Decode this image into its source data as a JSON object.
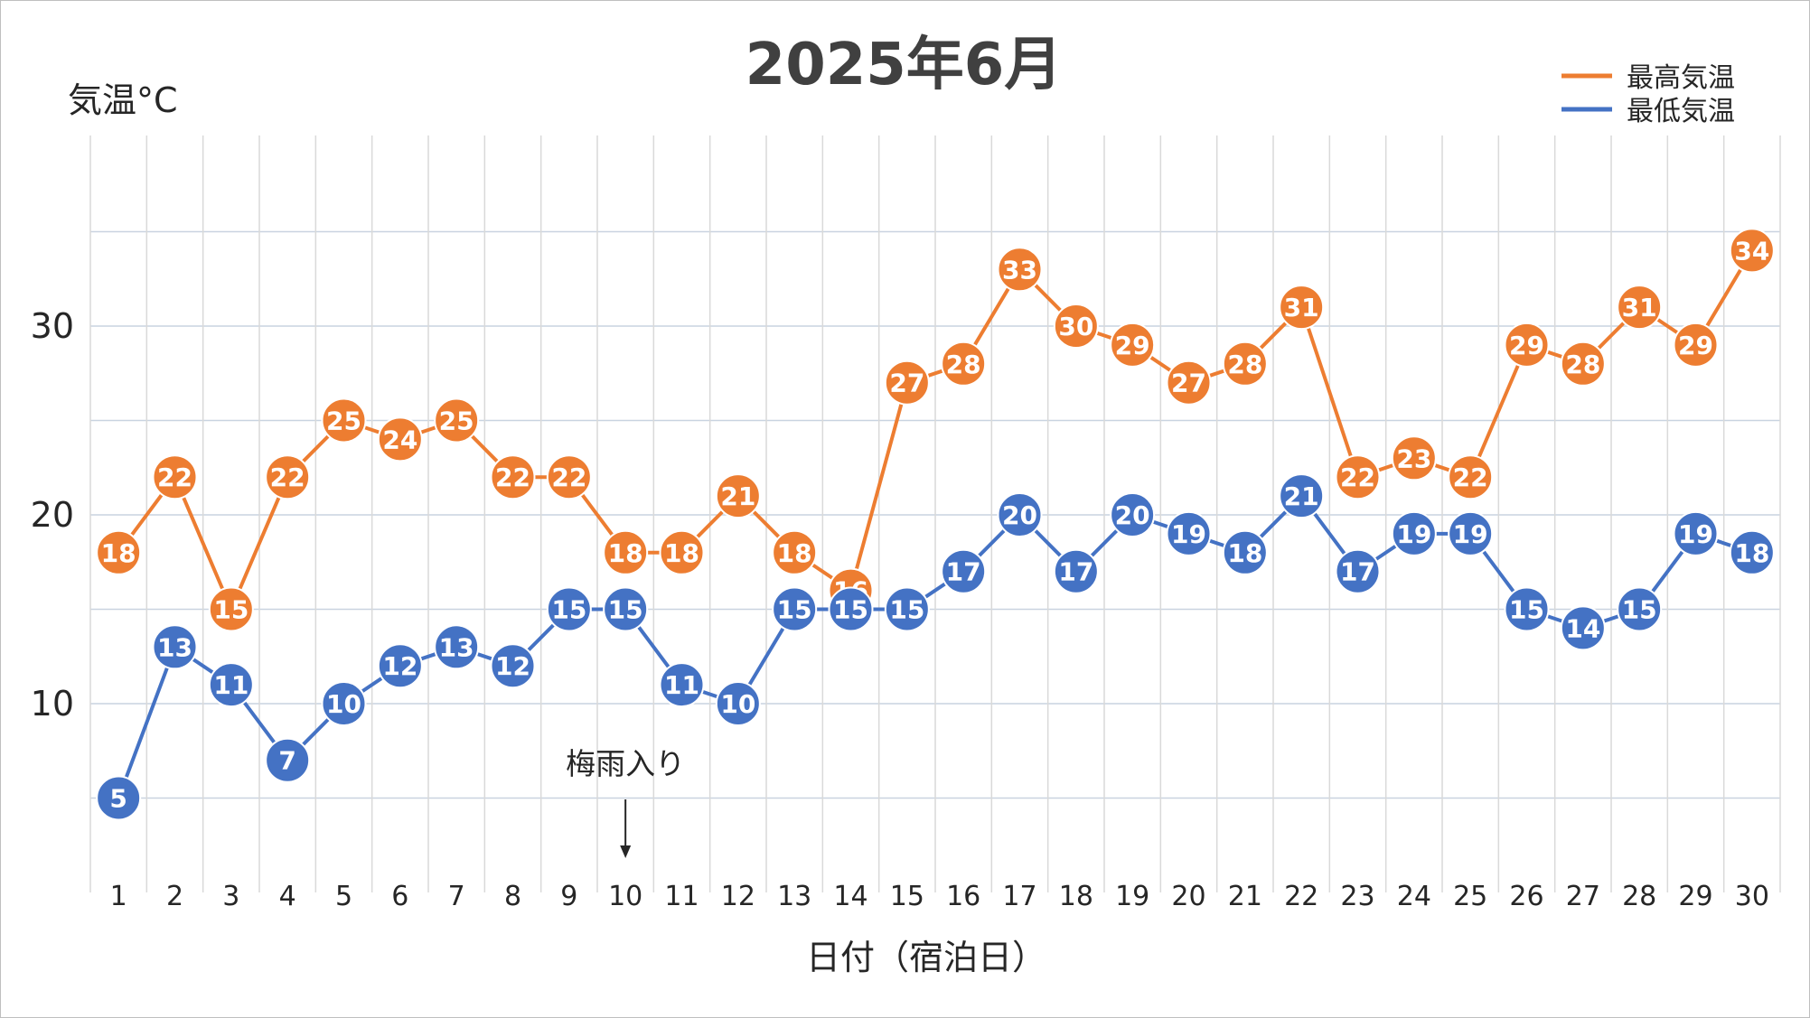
{
  "chart_data": {
    "type": "line",
    "title": "2025年6月",
    "ylabel": "気温°C",
    "xlabel": "日付（宿泊日）",
    "x": [
      1,
      2,
      3,
      4,
      5,
      6,
      7,
      8,
      9,
      10,
      11,
      12,
      13,
      14,
      15,
      16,
      17,
      18,
      19,
      20,
      21,
      22,
      23,
      24,
      25,
      26,
      27,
      28,
      29,
      30
    ],
    "ylim": [
      0,
      40
    ],
    "yticks": [
      10,
      20,
      30
    ],
    "grid": true,
    "legend_position": "top-right",
    "series": [
      {
        "name": "最高気温",
        "color": "#ED7D31",
        "values": [
          18,
          22,
          15,
          22,
          25,
          24,
          25,
          22,
          22,
          18,
          18,
          21,
          18,
          16,
          27,
          28,
          33,
          30,
          29,
          27,
          28,
          31,
          22,
          23,
          22,
          29,
          28,
          31,
          29,
          34
        ]
      },
      {
        "name": "最低気温",
        "color": "#4472C4",
        "values": [
          5,
          13,
          11,
          7,
          10,
          12,
          13,
          12,
          15,
          15,
          11,
          10,
          15,
          15,
          15,
          17,
          20,
          17,
          20,
          19,
          18,
          21,
          17,
          19,
          19,
          15,
          14,
          15,
          19,
          18
        ]
      }
    ],
    "annotations": [
      {
        "text": "梅雨入り",
        "x": 10,
        "arrow": "down"
      }
    ]
  }
}
